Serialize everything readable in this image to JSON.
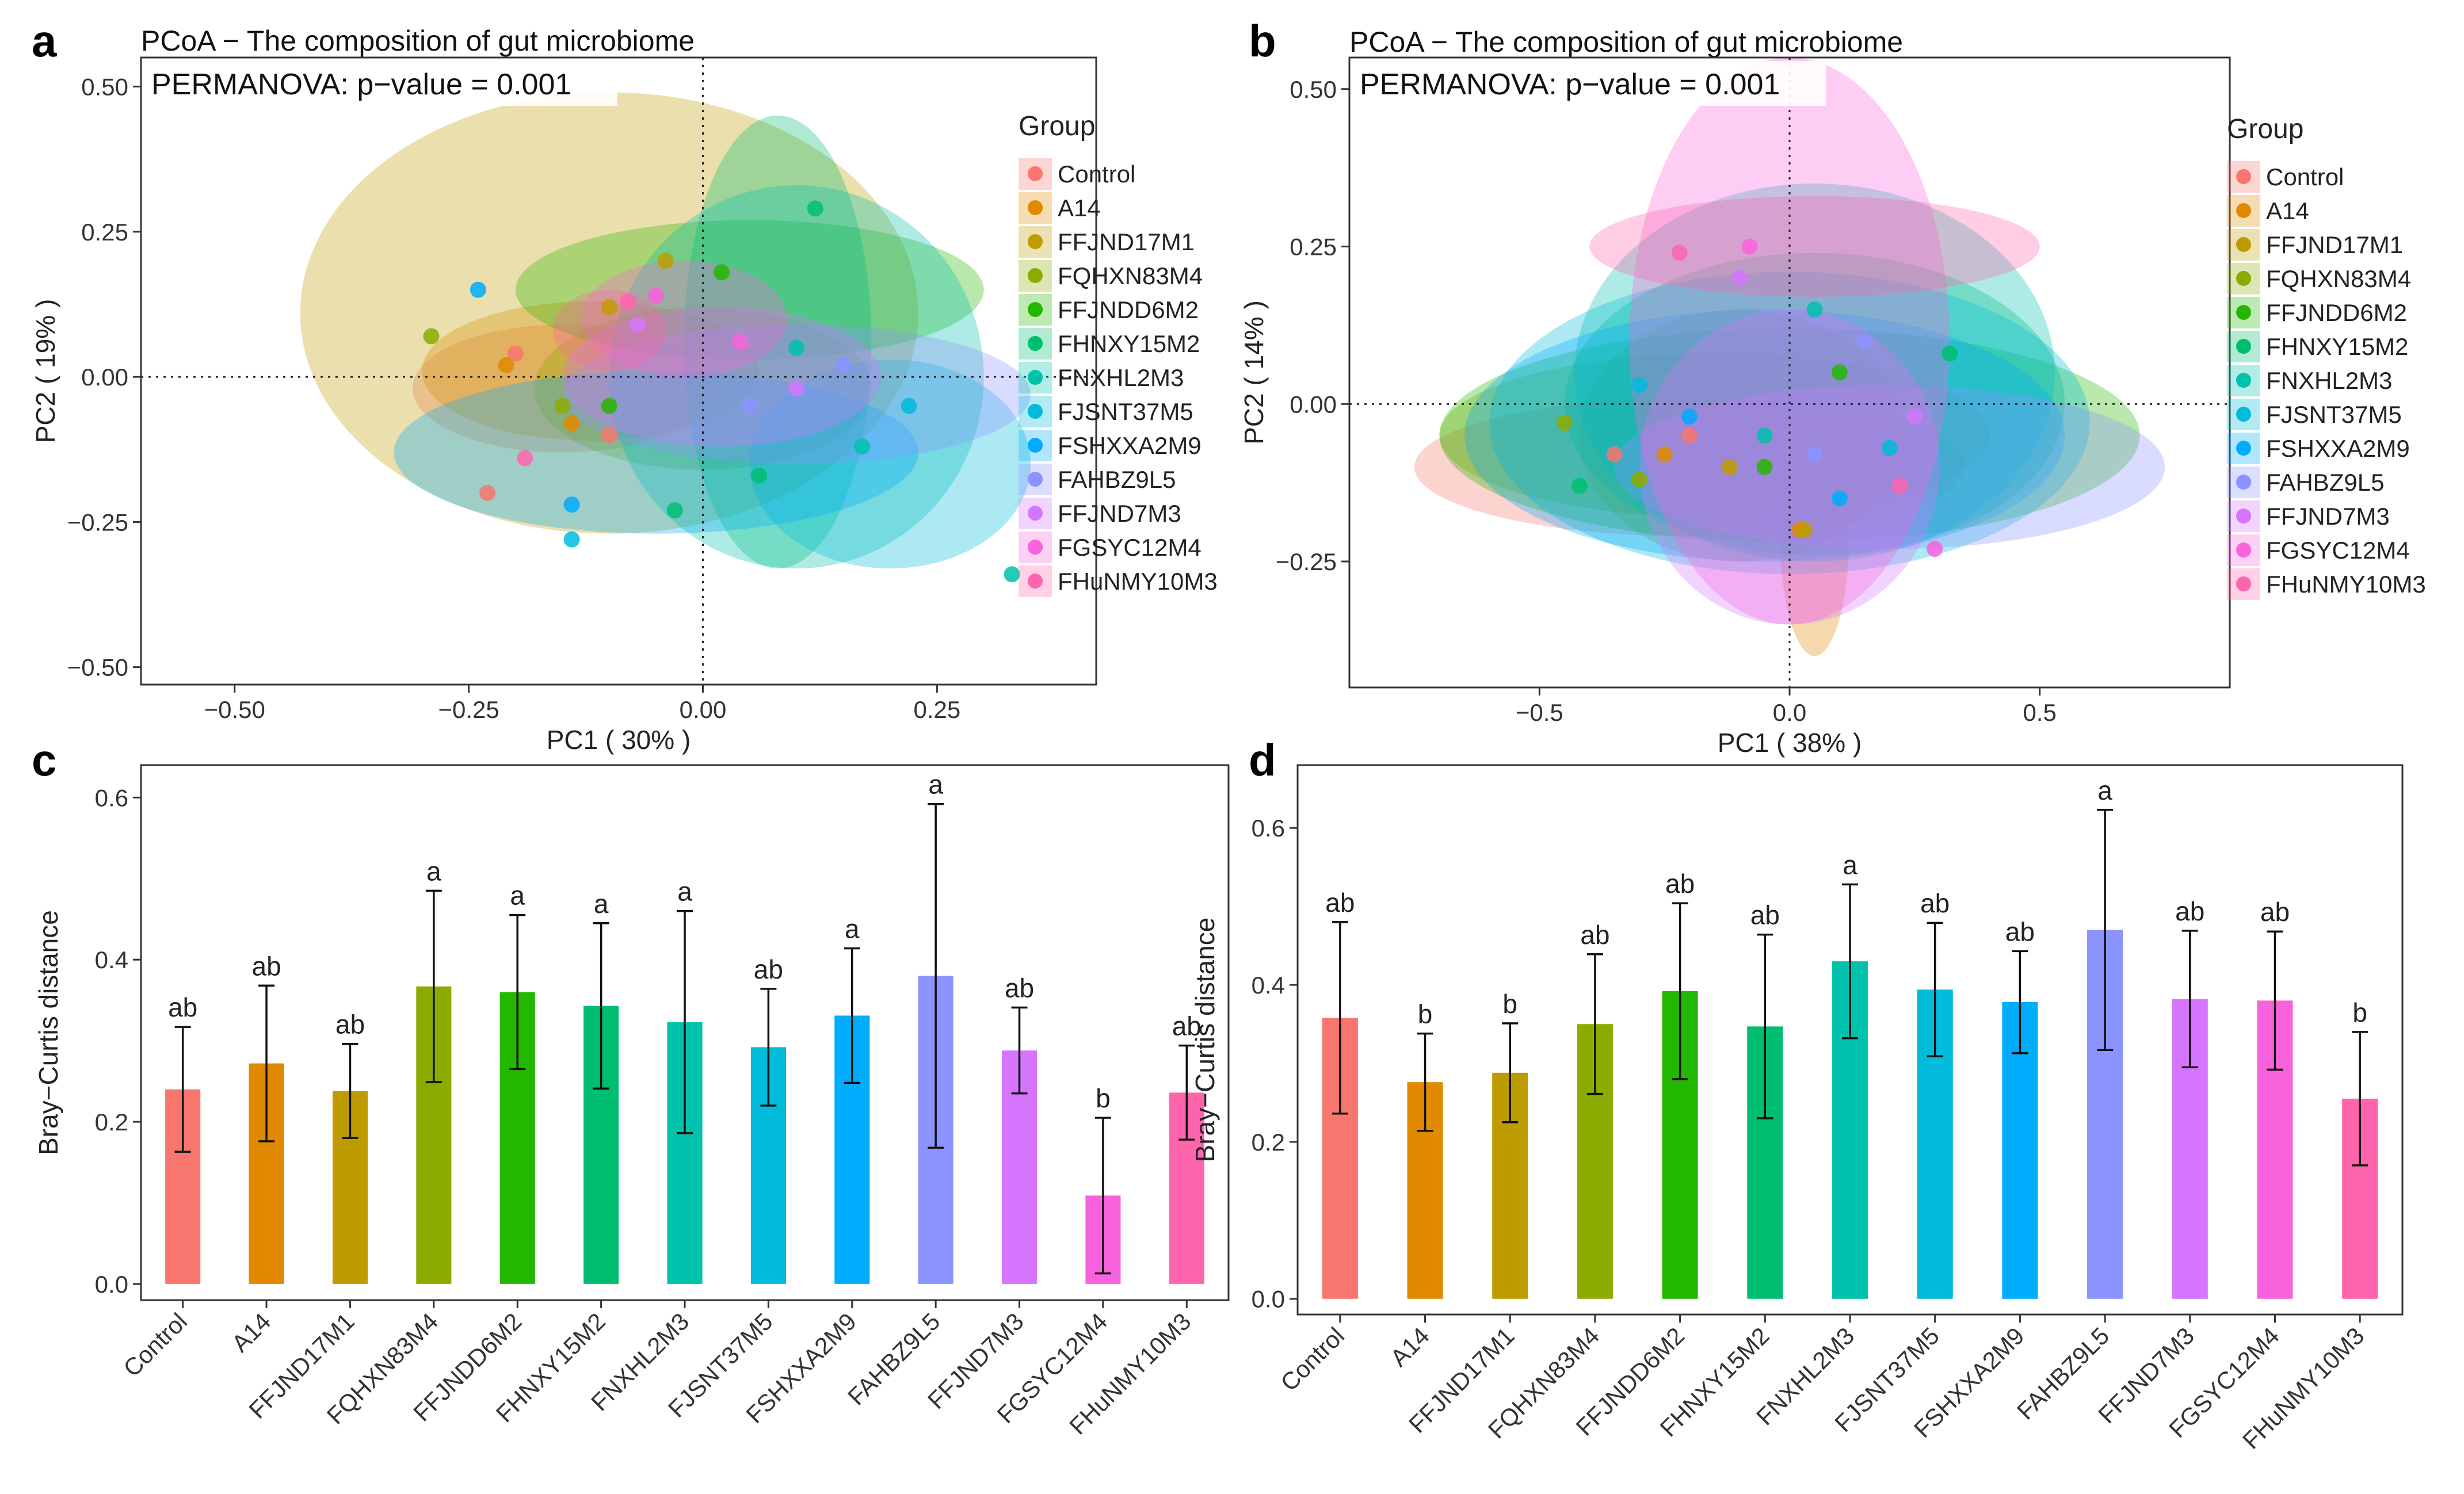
{
  "groups": [
    "Control",
    "A14",
    "FFJND17M1",
    "FQHXN83M4",
    "FFJNDD6M2",
    "FHNXY15M2",
    "FNXHL2M3",
    "FJSNT37M5",
    "FSHXXA2M9",
    "FAHBZ9L5",
    "FFJND7M3",
    "FGSYC12M4",
    "FHuNMY10M3"
  ],
  "colors": [
    "#F8766D",
    "#E18A00",
    "#BE9C00",
    "#8CAB00",
    "#24B700",
    "#00BE70",
    "#00C1AB",
    "#00BBDA",
    "#00ACFC",
    "#8B93FF",
    "#D575FE",
    "#F962DD",
    "#FF65AC"
  ],
  "chart_data": [
    {
      "panel_label": "a",
      "type": "scatter",
      "title": "PCoA − The composition of gut microbiome",
      "annotation": "PERMANOVA: p−value = 0.001",
      "xlabel": "PC1 ( 30% )",
      "ylabel": "PC2 ( 19% )",
      "xlim": [
        -0.6,
        0.42
      ],
      "ylim": [
        -0.53,
        0.55
      ],
      "xticks": [
        -0.5,
        -0.25,
        0.0,
        0.25
      ],
      "xtick_labels": [
        "−0.50",
        "−0.25",
        "0.00",
        "0.25"
      ],
      "yticks": [
        -0.5,
        -0.25,
        0.0,
        0.25,
        0.5
      ],
      "ytick_labels": [
        "−0.50",
        "−0.25",
        "0.00",
        "0.25",
        "0.50"
      ],
      "legend_title": "Group",
      "ellipses": [
        {
          "group": "Control",
          "cx": -0.15,
          "cy": -0.02,
          "rx": 0.16,
          "ry": 0.11,
          "angle": 0
        },
        {
          "group": "A14",
          "cx": -0.12,
          "cy": 0.01,
          "rx": 0.18,
          "ry": 0.12,
          "angle": 0
        },
        {
          "group": "FFJND17M1",
          "cx": -0.1,
          "cy": 0.11,
          "rx": 0.33,
          "ry": 0.38,
          "angle": 0
        },
        {
          "group": "FQHXN83M4",
          "cx": 0.0,
          "cy": -0.02,
          "rx": 0.18,
          "ry": 0.14,
          "angle": 0
        },
        {
          "group": "FFJNDD6M2",
          "cx": 0.05,
          "cy": 0.15,
          "rx": 0.25,
          "ry": 0.12,
          "angle": 0
        },
        {
          "group": "FHNXY15M2",
          "cx": 0.08,
          "cy": 0.06,
          "rx": 0.1,
          "ry": 0.39,
          "angle": 0
        },
        {
          "group": "FNXHL2M3",
          "cx": 0.1,
          "cy": 0.0,
          "rx": 0.2,
          "ry": 0.33,
          "angle": 0
        },
        {
          "group": "FJSNT37M5",
          "cx": 0.2,
          "cy": -0.15,
          "rx": 0.15,
          "ry": 0.18,
          "angle": 0
        },
        {
          "group": "FSHXXA2M9",
          "cx": -0.05,
          "cy": -0.13,
          "rx": 0.28,
          "ry": 0.14,
          "angle": 0
        },
        {
          "group": "FAHBZ9L5",
          "cx": 0.1,
          "cy": -0.03,
          "rx": 0.25,
          "ry": 0.12,
          "angle": 0
        },
        {
          "group": "FFJND7M3",
          "cx": 0.02,
          "cy": 0.0,
          "rx": 0.17,
          "ry": 0.12,
          "angle": 0
        },
        {
          "group": "FGSYC12M4",
          "cx": -0.02,
          "cy": 0.1,
          "rx": 0.11,
          "ry": 0.1,
          "angle": 0
        },
        {
          "group": "FHuNMY10M3",
          "cx": -0.1,
          "cy": 0.08,
          "rx": 0.06,
          "ry": 0.07,
          "angle": 0
        }
      ],
      "points": [
        {
          "group": "Control",
          "x": -0.2,
          "y": 0.04
        },
        {
          "group": "Control",
          "x": -0.23,
          "y": -0.2
        },
        {
          "group": "Control",
          "x": -0.1,
          "y": -0.1
        },
        {
          "group": "A14",
          "x": -0.21,
          "y": 0.02
        },
        {
          "group": "A14",
          "x": -0.14,
          "y": -0.08
        },
        {
          "group": "FFJND17M1",
          "x": -0.04,
          "y": 0.2
        },
        {
          "group": "FFJND17M1",
          "x": -0.1,
          "y": 0.12
        },
        {
          "group": "FQHXN83M4",
          "x": -0.29,
          "y": 0.07
        },
        {
          "group": "FQHXN83M4",
          "x": -0.15,
          "y": -0.05
        },
        {
          "group": "FFJNDD6M2",
          "x": 0.02,
          "y": 0.18
        },
        {
          "group": "FFJNDD6M2",
          "x": -0.1,
          "y": -0.05
        },
        {
          "group": "FHNXY15M2",
          "x": 0.12,
          "y": 0.29
        },
        {
          "group": "FHNXY15M2",
          "x": -0.03,
          "y": -0.23
        },
        {
          "group": "FHNXY15M2",
          "x": 0.06,
          "y": -0.17
        },
        {
          "group": "FNXHL2M3",
          "x": 0.33,
          "y": -0.34
        },
        {
          "group": "FNXHL2M3",
          "x": 0.17,
          "y": -0.12
        },
        {
          "group": "FNXHL2M3",
          "x": 0.1,
          "y": 0.05
        },
        {
          "group": "FJSNT37M5",
          "x": -0.14,
          "y": -0.28
        },
        {
          "group": "FJSNT37M5",
          "x": 0.22,
          "y": -0.05
        },
        {
          "group": "FSHXXA2M9",
          "x": -0.24,
          "y": 0.15
        },
        {
          "group": "FSHXXA2M9",
          "x": -0.14,
          "y": -0.22
        },
        {
          "group": "FAHBZ9L5",
          "x": 0.15,
          "y": 0.02
        },
        {
          "group": "FAHBZ9L5",
          "x": 0.05,
          "y": -0.05
        },
        {
          "group": "FFJND7M3",
          "x": -0.07,
          "y": 0.09
        },
        {
          "group": "FFJND7M3",
          "x": 0.1,
          "y": -0.02
        },
        {
          "group": "FGSYC12M4",
          "x": -0.05,
          "y": 0.14
        },
        {
          "group": "FGSYC12M4",
          "x": 0.04,
          "y": 0.06
        },
        {
          "group": "FHuNMY10M3",
          "x": -0.08,
          "y": 0.13
        },
        {
          "group": "FHuNMY10M3",
          "x": -0.19,
          "y": -0.14
        }
      ]
    },
    {
      "panel_label": "b",
      "type": "scatter",
      "title": "PCoA − The composition of gut microbiome",
      "annotation": "PERMANOVA: p−value = 0.001",
      "xlabel": "PC1 ( 38% )",
      "ylabel": "PC2 ( 14% )",
      "xlim": [
        -0.88,
        0.88
      ],
      "ylim": [
        -0.45,
        0.55
      ],
      "xticks": [
        -0.5,
        0.0,
        0.5
      ],
      "xtick_labels": [
        "−0.5",
        "0.0",
        "0.5"
      ],
      "yticks": [
        -0.25,
        0.0,
        0.25,
        0.5
      ],
      "ytick_labels": [
        "−0.25",
        "0.00",
        "0.25",
        "0.50"
      ],
      "legend_title": "Group",
      "ellipses": [
        {
          "group": "Control",
          "cx": -0.2,
          "cy": -0.1,
          "rx": 0.55,
          "ry": 0.11,
          "angle": 0
        },
        {
          "group": "A14",
          "cx": 0.05,
          "cy": -0.2,
          "rx": 0.07,
          "ry": 0.2,
          "angle": 0
        },
        {
          "group": "FFJND17M1",
          "cx": -0.1,
          "cy": -0.05,
          "rx": 0.32,
          "ry": 0.2,
          "angle": 0
        },
        {
          "group": "FQHXN83M4",
          "cx": -0.15,
          "cy": -0.05,
          "rx": 0.55,
          "ry": 0.13,
          "angle": 0
        },
        {
          "group": "FFJNDD6M2",
          "cx": 0.0,
          "cy": -0.05,
          "rx": 0.7,
          "ry": 0.17,
          "angle": 0
        },
        {
          "group": "FHNXY15M2",
          "cx": 0.05,
          "cy": 0.0,
          "rx": 0.5,
          "ry": 0.24,
          "angle": 0
        },
        {
          "group": "FNXHL2M3",
          "cx": 0.05,
          "cy": 0.05,
          "rx": 0.48,
          "ry": 0.3,
          "angle": 0
        },
        {
          "group": "FJSNT37M5",
          "cx": 0.0,
          "cy": -0.03,
          "rx": 0.6,
          "ry": 0.24,
          "angle": 0
        },
        {
          "group": "FSHXXA2M9",
          "cx": -0.05,
          "cy": -0.05,
          "rx": 0.6,
          "ry": 0.2,
          "angle": 0
        },
        {
          "group": "FAHBZ9L5",
          "cx": 0.2,
          "cy": -0.1,
          "rx": 0.55,
          "ry": 0.13,
          "angle": 0
        },
        {
          "group": "FFJND7M3",
          "cx": 0.0,
          "cy": -0.1,
          "rx": 0.3,
          "ry": 0.25,
          "angle": 0
        },
        {
          "group": "FGSYC12M4",
          "cx": 0.0,
          "cy": 0.1,
          "rx": 0.32,
          "ry": 0.45,
          "angle": 0
        },
        {
          "group": "FHuNMY10M3",
          "cx": 0.05,
          "cy": 0.25,
          "rx": 0.45,
          "ry": 0.08,
          "angle": 0
        }
      ],
      "points": [
        {
          "group": "Control",
          "x": -0.35,
          "y": -0.08
        },
        {
          "group": "Control",
          "x": -0.2,
          "y": -0.05
        },
        {
          "group": "A14",
          "x": 0.02,
          "y": -0.2
        },
        {
          "group": "A14",
          "x": -0.25,
          "y": -0.08
        },
        {
          "group": "FFJND17M1",
          "x": -0.12,
          "y": -0.1
        },
        {
          "group": "FFJND17M1",
          "x": 0.03,
          "y": -0.2
        },
        {
          "group": "FQHXN83M4",
          "x": -0.45,
          "y": -0.03
        },
        {
          "group": "FQHXN83M4",
          "x": -0.3,
          "y": -0.12
        },
        {
          "group": "FFJNDD6M2",
          "x": 0.1,
          "y": 0.05
        },
        {
          "group": "FFJNDD6M2",
          "x": -0.05,
          "y": -0.1
        },
        {
          "group": "FHNXY15M2",
          "x": 0.32,
          "y": 0.08
        },
        {
          "group": "FHNXY15M2",
          "x": -0.42,
          "y": -0.13
        },
        {
          "group": "FNXHL2M3",
          "x": 0.05,
          "y": 0.15
        },
        {
          "group": "FNXHL2M3",
          "x": -0.05,
          "y": -0.05
        },
        {
          "group": "FJSNT37M5",
          "x": -0.3,
          "y": 0.03
        },
        {
          "group": "FJSNT37M5",
          "x": 0.2,
          "y": -0.07
        },
        {
          "group": "FSHXXA2M9",
          "x": -0.2,
          "y": -0.02
        },
        {
          "group": "FSHXXA2M9",
          "x": 0.1,
          "y": -0.15
        },
        {
          "group": "FAHBZ9L5",
          "x": 0.15,
          "y": 0.1
        },
        {
          "group": "FAHBZ9L5",
          "x": 0.05,
          "y": -0.08
        },
        {
          "group": "FFJND7M3",
          "x": -0.1,
          "y": 0.2
        },
        {
          "group": "FFJND7M3",
          "x": 0.25,
          "y": -0.02
        },
        {
          "group": "FGSYC12M4",
          "x": -0.08,
          "y": 0.25
        },
        {
          "group": "FGSYC12M4",
          "x": 0.29,
          "y": -0.23
        },
        {
          "group": "FHuNMY10M3",
          "x": -0.22,
          "y": 0.24
        },
        {
          "group": "FHuNMY10M3",
          "x": 0.22,
          "y": -0.13
        }
      ]
    },
    {
      "panel_label": "c",
      "type": "bar",
      "ylabel": "Bray−Curtis distance",
      "ylim": [
        -0.02,
        0.64
      ],
      "yticks": [
        0.0,
        0.2,
        0.4,
        0.6
      ],
      "ytick_labels": [
        "0.0",
        "0.2",
        "0.4",
        "0.6"
      ],
      "categories": [
        "Control",
        "A14",
        "FFJND17M1",
        "FQHXN83M4",
        "FFJNDD6M2",
        "FHNXY15M2",
        "FNXHL2M3",
        "FJSNT37M5",
        "FSHXXA2M9",
        "FAHBZ9L5",
        "FFJND7M3",
        "FGSYC12M4",
        "FHuNMY10M3"
      ],
      "values": [
        0.24,
        0.272,
        0.238,
        0.367,
        0.36,
        0.343,
        0.323,
        0.292,
        0.331,
        0.38,
        0.288,
        0.109,
        0.236
      ],
      "errors": [
        0.077,
        0.096,
        0.058,
        0.118,
        0.095,
        0.102,
        0.137,
        0.072,
        0.083,
        0.212,
        0.053,
        0.096,
        0.058
      ],
      "significance": [
        "ab",
        "ab",
        "ab",
        "a",
        "a",
        "a",
        "a",
        "ab",
        "a",
        "a",
        "ab",
        "b",
        "ab"
      ]
    },
    {
      "panel_label": "d",
      "type": "bar",
      "ylabel": "Bray−Curtis distance",
      "ylim": [
        -0.02,
        0.68
      ],
      "yticks": [
        0.0,
        0.2,
        0.4,
        0.6
      ],
      "ytick_labels": [
        "0.0",
        "0.2",
        "0.4",
        "0.6"
      ],
      "categories": [
        "Control",
        "A14",
        "FFJND17M1",
        "FQHXN83M4",
        "FFJNDD6M2",
        "FHNXY15M2",
        "FNXHL2M3",
        "FJSNT37M5",
        "FSHXXA2M9",
        "FAHBZ9L5",
        "FFJND7M3",
        "FGSYC12M4",
        "FHuNMY10M3"
      ],
      "values": [
        0.358,
        0.276,
        0.288,
        0.35,
        0.392,
        0.347,
        0.43,
        0.394,
        0.378,
        0.47,
        0.382,
        0.38,
        0.255
      ],
      "errors": [
        0.122,
        0.062,
        0.063,
        0.089,
        0.112,
        0.117,
        0.098,
        0.085,
        0.065,
        0.153,
        0.087,
        0.088,
        0.085
      ],
      "significance": [
        "ab",
        "b",
        "b",
        "ab",
        "ab",
        "ab",
        "a",
        "ab",
        "ab",
        "a",
        "ab",
        "ab",
        "b"
      ]
    }
  ]
}
